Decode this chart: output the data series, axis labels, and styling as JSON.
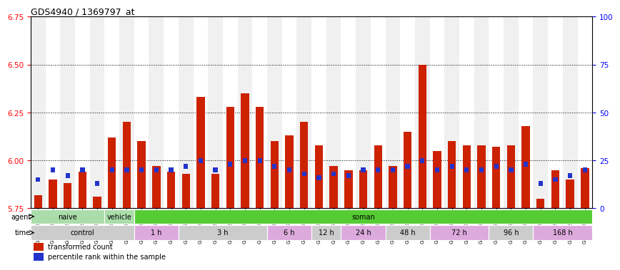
{
  "title": "GDS4940 / 1369797_at",
  "samples": [
    "GSM338857",
    "GSM338858",
    "GSM338859",
    "GSM338862",
    "GSM338864",
    "GSM338877",
    "GSM338880",
    "GSM338860",
    "GSM338861",
    "GSM338863",
    "GSM338865",
    "GSM338866",
    "GSM338867",
    "GSM338868",
    "GSM338869",
    "GSM338870",
    "GSM338871",
    "GSM338872",
    "GSM338873",
    "GSM338874",
    "GSM338875",
    "GSM338876",
    "GSM338878",
    "GSM338879",
    "GSM338881",
    "GSM338882",
    "GSM338883",
    "GSM338884",
    "GSM338885",
    "GSM338886",
    "GSM338887",
    "GSM338888",
    "GSM338889",
    "GSM338890",
    "GSM338891",
    "GSM338892",
    "GSM338893",
    "GSM338894"
  ],
  "red_values": [
    5.82,
    5.9,
    5.88,
    5.94,
    5.81,
    6.12,
    6.2,
    6.1,
    5.97,
    5.94,
    5.93,
    6.33,
    5.93,
    6.28,
    6.35,
    6.28,
    6.1,
    6.13,
    6.2,
    6.08,
    5.97,
    5.95,
    5.95,
    6.08,
    5.97,
    6.15,
    6.5,
    6.05,
    6.1,
    6.08,
    6.08,
    6.07,
    6.08,
    6.18,
    5.8,
    5.95,
    5.9,
    5.96
  ],
  "blue_percentile": [
    15,
    20,
    17,
    20,
    13,
    20,
    20,
    20,
    20,
    20,
    22,
    25,
    20,
    23,
    25,
    25,
    22,
    20,
    18,
    16,
    18,
    17,
    20,
    20,
    20,
    22,
    25,
    20,
    22,
    20,
    20,
    22,
    20,
    23,
    13,
    15,
    17,
    20
  ],
  "baseline": 5.75,
  "ylim_left": [
    5.75,
    6.75
  ],
  "ylim_right": [
    0,
    100
  ],
  "yticks_left": [
    5.75,
    6.0,
    6.25,
    6.5,
    6.75
  ],
  "yticks_right": [
    0,
    25,
    50,
    75,
    100
  ],
  "grid_lines": [
    6.0,
    6.25,
    6.5
  ],
  "bar_color": "#cc2200",
  "blue_color": "#2233cc",
  "agent_spans": [
    {
      "label": "naive",
      "start": 0,
      "end": 5,
      "color": "#aaddaa"
    },
    {
      "label": "vehicle",
      "start": 5,
      "end": 7,
      "color": "#aaddaa"
    },
    {
      "label": "soman",
      "start": 7,
      "end": 38,
      "color": "#55cc33"
    }
  ],
  "time_spans": [
    {
      "label": "control",
      "start": 0,
      "end": 7,
      "color": "#cccccc"
    },
    {
      "label": "1 h",
      "start": 7,
      "end": 10,
      "color": "#ddaadd"
    },
    {
      "label": "3 h",
      "start": 10,
      "end": 16,
      "color": "#cccccc"
    },
    {
      "label": "6 h",
      "start": 16,
      "end": 19,
      "color": "#ddaadd"
    },
    {
      "label": "12 h",
      "start": 19,
      "end": 21,
      "color": "#cccccc"
    },
    {
      "label": "24 h",
      "start": 21,
      "end": 24,
      "color": "#ddaadd"
    },
    {
      "label": "48 h",
      "start": 24,
      "end": 27,
      "color": "#cccccc"
    },
    {
      "label": "72 h",
      "start": 27,
      "end": 31,
      "color": "#ddaadd"
    },
    {
      "label": "96 h",
      "start": 31,
      "end": 34,
      "color": "#cccccc"
    },
    {
      "label": "168 h",
      "start": 34,
      "end": 38,
      "color": "#ddaadd"
    }
  ]
}
